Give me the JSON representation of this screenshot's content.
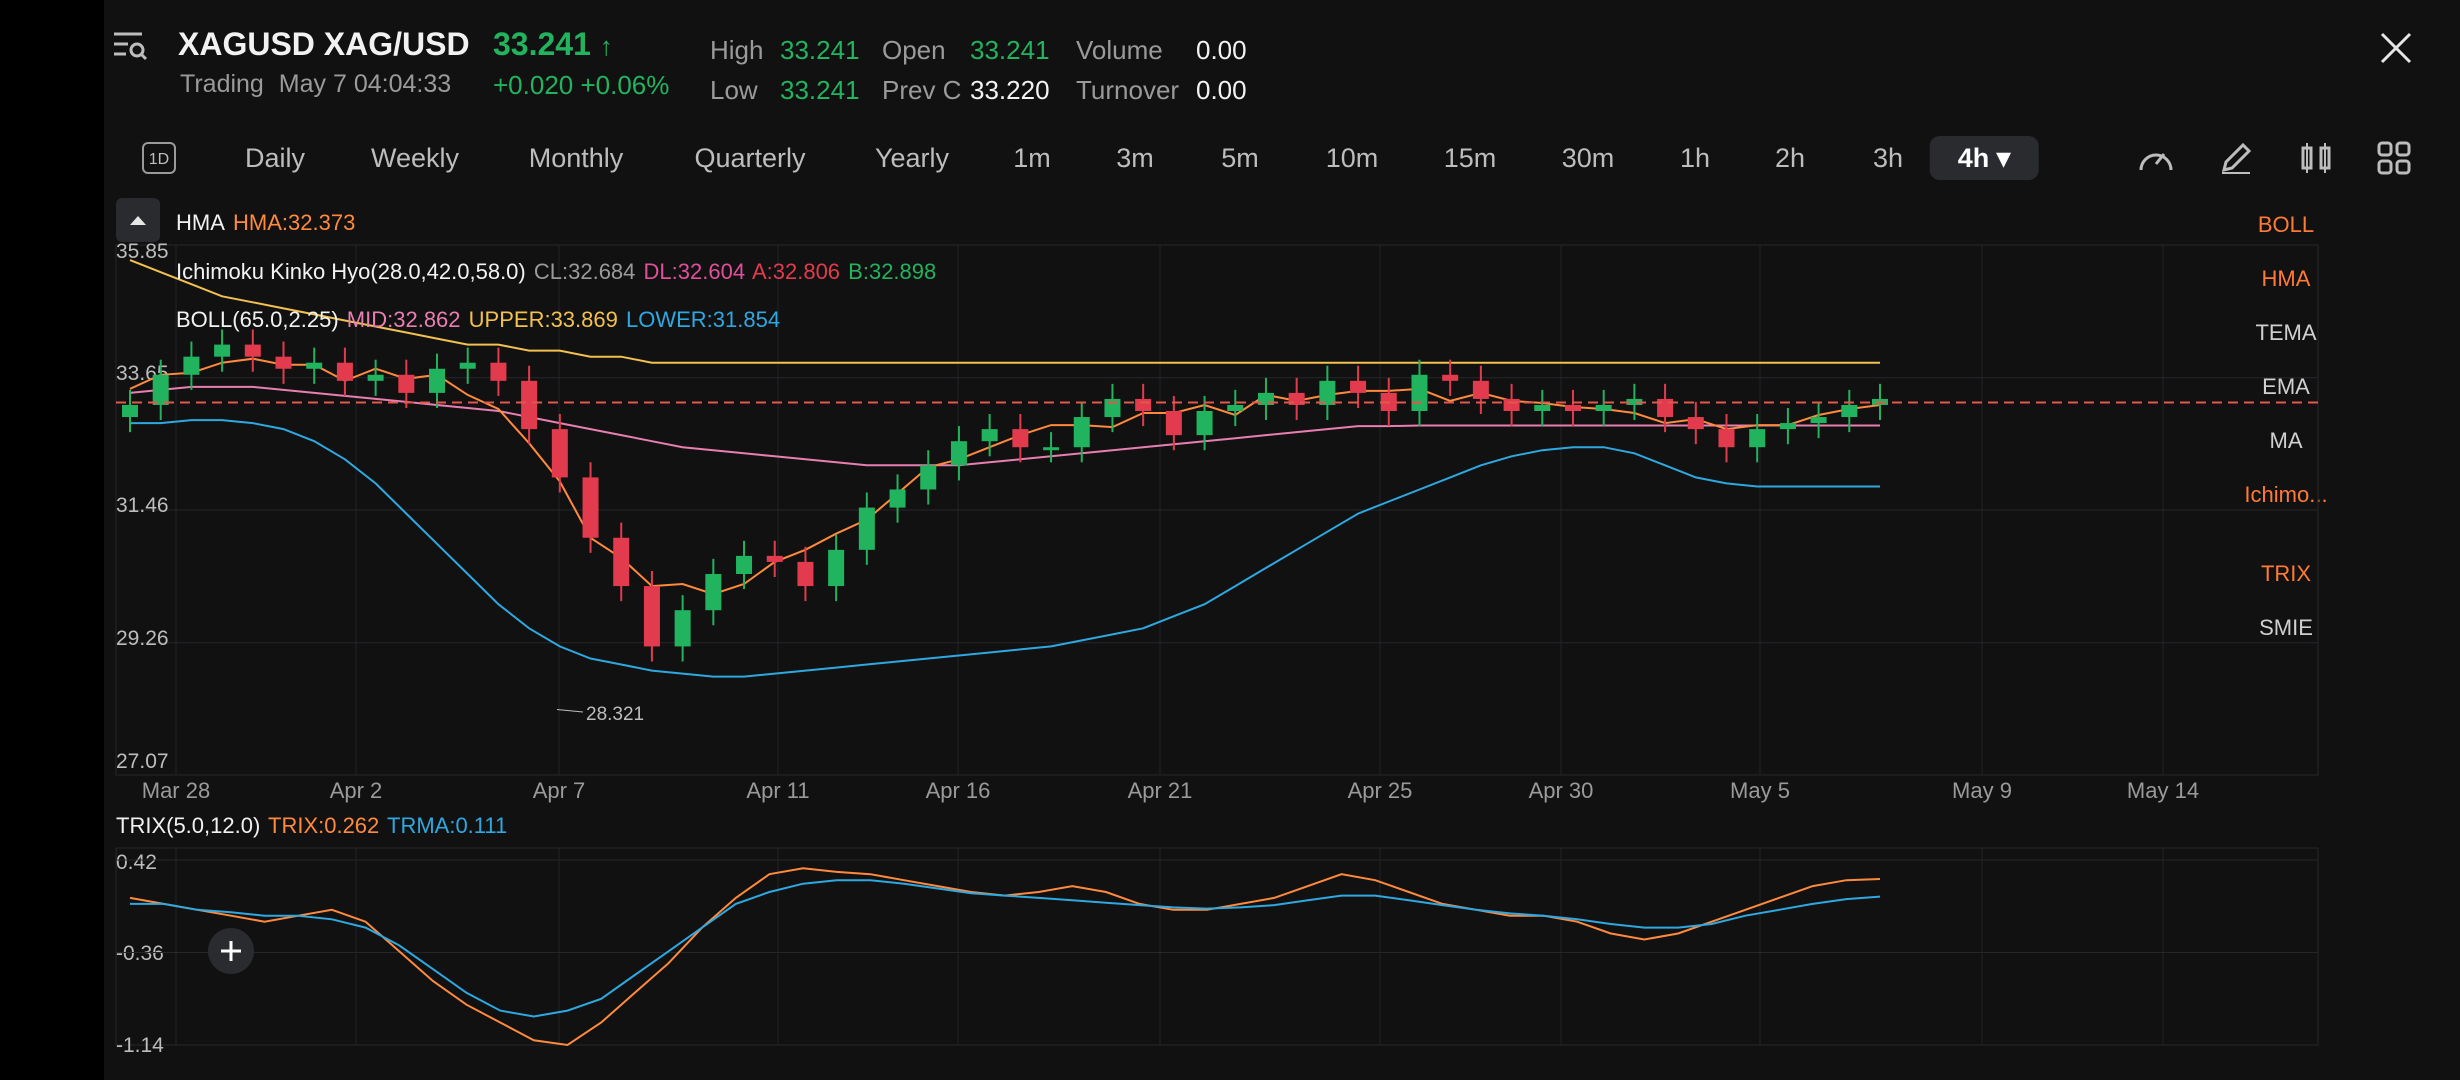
{
  "header": {
    "symbol": "XAGUSD XAG/USD",
    "price": "33.241",
    "price_arrow": "↑",
    "status": "Trading",
    "datetime": "May 7 04:04:33",
    "change": "+0.020 +0.06%",
    "stats": {
      "high_label": "High",
      "high": "33.241",
      "low_label": "Low",
      "low": "33.241",
      "open_label": "Open",
      "open": "33.241",
      "prevc_label": "Prev C",
      "prevc": "33.220",
      "volume_label": "Volume",
      "volume": "0.00",
      "turnover_label": "Turnover",
      "turnover": "0.00"
    }
  },
  "toolbar": {
    "period_icon_text": "1D",
    "timeframes": [
      "Daily",
      "Weekly",
      "Monthly",
      "Quarterly",
      "Yearly",
      "1m",
      "3m",
      "5m",
      "10m",
      "15m",
      "30m",
      "1h",
      "2h",
      "3h",
      "4h"
    ],
    "active_timeframe": "4h",
    "active_arrow": "▾"
  },
  "indicators_panel": {
    "main": [
      "BOLL",
      "HMA",
      "TEMA",
      "EMA",
      "MA",
      "Ichimo..."
    ],
    "main_active": [
      "BOLL",
      "HMA",
      "Ichimo..."
    ],
    "sub": [
      "TRIX",
      "SMIE"
    ],
    "sub_active": [
      "TRIX"
    ]
  },
  "legends": {
    "hma": {
      "name": "HMA",
      "value": "HMA:32.373"
    },
    "ichimoku": {
      "name": "Ichimoku Kinko Hyo(28.0,42.0,58.0)",
      "cl": "CL:32.684",
      "dl": "DL:32.604",
      "a": "A:32.806",
      "b": "B:32.898"
    },
    "boll": {
      "name": "BOLL(65.0,2.25)",
      "mid": "MID:32.862",
      "upper": "UPPER:33.869",
      "lower": "LOWER:31.854"
    },
    "trix": {
      "name": "TRIX(5.0,12.0)",
      "trix": "TRIX:0.262",
      "trma": "TRMA:0.111"
    }
  },
  "annotations": {
    "min_price": "28.321"
  },
  "colors": {
    "up": "#22b35e",
    "down": "#e23b4e",
    "boll_upper": "#f2c14e",
    "boll_mid": "#e87fb0",
    "boll_lower": "#2ea8e0",
    "hma": "#ff8a3d",
    "cl": "#9a9a9a",
    "dl": "#e0509a",
    "span_a": "#e23b4e",
    "span_b": "#22b35e",
    "chikou": "#f0c75e",
    "trix": "#ff8a3d",
    "trma": "#2ea8e0"
  },
  "chart_data": [
    {
      "type": "candlestick",
      "title": "XAGUSD 4h",
      "y_ticks": [
        "35.85",
        "33.65",
        "31.46",
        "29.26",
        "27.07"
      ],
      "ylim": [
        27.07,
        35.85
      ],
      "x_ticks": [
        "Mar 28",
        "Apr 2",
        "Apr 7",
        "Apr 11",
        "Apr 16",
        "Apr 21",
        "Apr 25",
        "Apr 30",
        "May 5",
        "May 9",
        "May 14"
      ],
      "current_price": 33.241,
      "close": [
        33.2,
        33.7,
        34.0,
        34.2,
        34.0,
        33.8,
        33.9,
        33.6,
        33.7,
        33.4,
        33.8,
        33.9,
        33.6,
        32.8,
        32.0,
        31.0,
        30.2,
        29.2,
        29.8,
        30.4,
        30.7,
        30.6,
        30.2,
        30.8,
        31.5,
        31.8,
        32.2,
        32.6,
        32.8,
        32.5,
        32.5,
        33.0,
        33.3,
        33.1,
        32.7,
        33.1,
        33.2,
        33.4,
        33.2,
        33.6,
        33.4,
        33.1,
        33.7,
        33.6,
        33.3,
        33.1,
        33.2,
        33.1,
        33.2,
        33.3,
        33.0,
        32.8,
        32.5,
        32.8,
        32.9,
        33.0,
        33.2,
        33.3
      ],
      "series": [
        {
          "name": "BOLL UPPER",
          "values": [
            35.6,
            35.4,
            35.2,
            35.0,
            34.9,
            34.8,
            34.7,
            34.6,
            34.5,
            34.4,
            34.3,
            34.2,
            34.2,
            34.1,
            34.1,
            34.0,
            34.0,
            33.9,
            33.9,
            33.9,
            33.9,
            33.9,
            33.9,
            33.9,
            33.9,
            33.9,
            33.9,
            33.9,
            33.9,
            33.9,
            33.9,
            33.9,
            33.9,
            33.9,
            33.9,
            33.9,
            33.9,
            33.9,
            33.9,
            33.9,
            33.9,
            33.9,
            33.9,
            33.9,
            33.9,
            33.9,
            33.9,
            33.9,
            33.9,
            33.9,
            33.9,
            33.9,
            33.9,
            33.9,
            33.9,
            33.9,
            33.9,
            33.9
          ]
        },
        {
          "name": "BOLL MID",
          "values": [
            33.4,
            33.45,
            33.5,
            33.5,
            33.5,
            33.45,
            33.4,
            33.35,
            33.3,
            33.25,
            33.2,
            33.15,
            33.1,
            33.0,
            32.9,
            32.8,
            32.7,
            32.6,
            32.5,
            32.45,
            32.4,
            32.35,
            32.3,
            32.25,
            32.2,
            32.2,
            32.2,
            32.2,
            32.25,
            32.3,
            32.35,
            32.4,
            32.45,
            32.5,
            32.55,
            32.6,
            32.65,
            32.7,
            32.75,
            32.8,
            32.85,
            32.85,
            32.86,
            32.86,
            32.86,
            32.86,
            32.86,
            32.86,
            32.86,
            32.86,
            32.86,
            32.86,
            32.86,
            32.86,
            32.86,
            32.86,
            32.86,
            32.86
          ]
        },
        {
          "name": "BOLL LOWER",
          "values": [
            32.9,
            32.9,
            32.95,
            32.95,
            32.9,
            32.8,
            32.6,
            32.3,
            31.9,
            31.4,
            30.9,
            30.4,
            29.9,
            29.5,
            29.2,
            29.0,
            28.9,
            28.8,
            28.75,
            28.7,
            28.7,
            28.75,
            28.8,
            28.85,
            28.9,
            28.95,
            29.0,
            29.05,
            29.1,
            29.15,
            29.2,
            29.3,
            29.4,
            29.5,
            29.7,
            29.9,
            30.2,
            30.5,
            30.8,
            31.1,
            31.4,
            31.6,
            31.8,
            32.0,
            32.2,
            32.35,
            32.45,
            32.5,
            32.5,
            32.4,
            32.2,
            32.0,
            31.9,
            31.85,
            31.85,
            31.85,
            31.85,
            31.85
          ]
        }
      ]
    },
    {
      "type": "line",
      "title": "TRIX(5.0,12.0)",
      "y_ticks": [
        "0.42",
        "-0.36",
        "-1.14"
      ],
      "ylim": [
        -1.14,
        0.42
      ],
      "series": [
        {
          "name": "TRIX",
          "values": [
            0.1,
            0.05,
            0.0,
            -0.05,
            -0.1,
            -0.05,
            0.0,
            -0.1,
            -0.35,
            -0.6,
            -0.8,
            -0.95,
            -1.1,
            -1.14,
            -0.95,
            -0.7,
            -0.45,
            -0.15,
            0.1,
            0.3,
            0.35,
            0.32,
            0.3,
            0.25,
            0.2,
            0.15,
            0.12,
            0.15,
            0.2,
            0.15,
            0.05,
            0.0,
            0.0,
            0.05,
            0.1,
            0.2,
            0.3,
            0.25,
            0.15,
            0.05,
            0.0,
            -0.05,
            -0.05,
            -0.1,
            -0.2,
            -0.25,
            -0.2,
            -0.1,
            0.0,
            0.1,
            0.2,
            0.25,
            0.26
          ]
        },
        {
          "name": "TRMA",
          "values": [
            0.05,
            0.05,
            0.0,
            -0.02,
            -0.05,
            -0.05,
            -0.08,
            -0.15,
            -0.3,
            -0.5,
            -0.7,
            -0.85,
            -0.9,
            -0.85,
            -0.75,
            -0.55,
            -0.35,
            -0.15,
            0.05,
            0.15,
            0.22,
            0.25,
            0.25,
            0.22,
            0.18,
            0.14,
            0.12,
            0.1,
            0.08,
            0.06,
            0.04,
            0.02,
            0.01,
            0.02,
            0.04,
            0.08,
            0.12,
            0.12,
            0.08,
            0.04,
            0.0,
            -0.03,
            -0.05,
            -0.08,
            -0.12,
            -0.15,
            -0.15,
            -0.12,
            -0.05,
            0.0,
            0.05,
            0.09,
            0.111
          ]
        }
      ]
    }
  ]
}
